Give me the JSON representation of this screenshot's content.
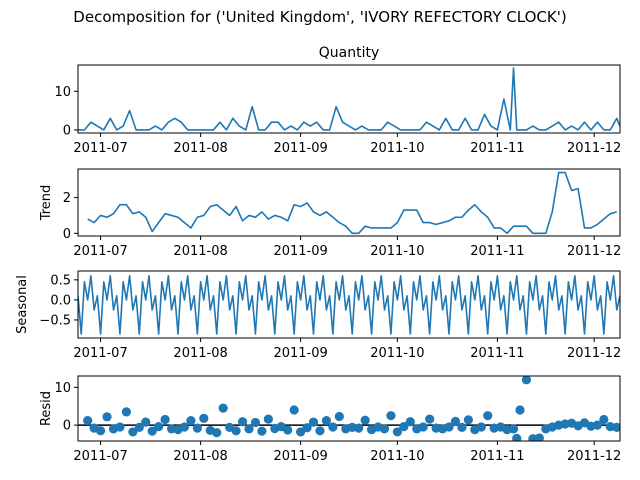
{
  "figure": {
    "title": "Decomposition for ('United Kingdom', 'IVORY REFECTORY CLOCK')",
    "line_color": "#1f77b4",
    "zero_line_color": "#000000"
  },
  "chart_data": [
    {
      "type": "line",
      "title": "Quantity",
      "xlabel": "",
      "ylabel": "",
      "xlim": [
        "2011-06-24",
        "2011-12-09"
      ],
      "ylim": [
        -0.8,
        16.8
      ],
      "grid": false,
      "yticks": [
        {
          "value": 0,
          "label": "0"
        },
        {
          "value": 10,
          "label": "10"
        }
      ],
      "xticks": [
        {
          "value": "2011-07-01",
          "label": "2011-07"
        },
        {
          "value": "2011-08-01",
          "label": "2011-08"
        },
        {
          "value": "2011-09-01",
          "label": "2011-09"
        },
        {
          "value": "2011-10-01",
          "label": "2011-10"
        },
        {
          "value": "2011-11-01",
          "label": "2011-11"
        },
        {
          "value": "2011-12-01",
          "label": "2011-12"
        }
      ],
      "x": [
        "2011-06-24",
        "2011-06-26",
        "2011-06-28",
        "2011-06-30",
        "2011-07-02",
        "2011-07-04",
        "2011-07-06",
        "2011-07-08",
        "2011-07-10",
        "2011-07-12",
        "2011-07-14",
        "2011-07-16",
        "2011-07-18",
        "2011-07-20",
        "2011-07-22",
        "2011-07-24",
        "2011-07-26",
        "2011-07-28",
        "2011-07-30",
        "2011-08-01",
        "2011-08-03",
        "2011-08-05",
        "2011-08-07",
        "2011-08-09",
        "2011-08-11",
        "2011-08-13",
        "2011-08-15",
        "2011-08-17",
        "2011-08-19",
        "2011-08-21",
        "2011-08-23",
        "2011-08-25",
        "2011-08-27",
        "2011-08-29",
        "2011-08-31",
        "2011-09-02",
        "2011-09-04",
        "2011-09-06",
        "2011-09-08",
        "2011-09-10",
        "2011-09-12",
        "2011-09-14",
        "2011-09-16",
        "2011-09-18",
        "2011-09-20",
        "2011-09-22",
        "2011-09-24",
        "2011-09-26",
        "2011-09-28",
        "2011-09-30",
        "2011-10-02",
        "2011-10-04",
        "2011-10-06",
        "2011-10-08",
        "2011-10-10",
        "2011-10-12",
        "2011-10-14",
        "2011-10-16",
        "2011-10-18",
        "2011-10-20",
        "2011-10-22",
        "2011-10-24",
        "2011-10-26",
        "2011-10-28",
        "2011-10-30",
        "2011-11-01",
        "2011-11-03",
        "2011-11-05",
        "2011-11-06",
        "2011-11-07",
        "2011-11-08",
        "2011-11-10",
        "2011-11-12",
        "2011-11-14",
        "2011-11-16",
        "2011-11-18",
        "2011-11-20",
        "2011-11-22",
        "2011-11-24",
        "2011-11-26",
        "2011-11-28",
        "2011-11-30",
        "2011-12-02",
        "2011-12-04",
        "2011-12-06",
        "2011-12-08",
        "2011-12-09"
      ],
      "series": [
        {
          "values": [
            0,
            0,
            2,
            1,
            0,
            3,
            0,
            1,
            5,
            0,
            0,
            0,
            1,
            0,
            2,
            3,
            2,
            0,
            0,
            0,
            0,
            0,
            2,
            0,
            3,
            1,
            0,
            6,
            0,
            0,
            2,
            2,
            0,
            1,
            0,
            2,
            1,
            2,
            0,
            0,
            6,
            2,
            1,
            0,
            1,
            0,
            0,
            0,
            2,
            1,
            0,
            0,
            0,
            0,
            2,
            1,
            0,
            3,
            0,
            0,
            3,
            0,
            0,
            4,
            1,
            0,
            8,
            0,
            16,
            0,
            0,
            0,
            1,
            0,
            0,
            1,
            2,
            0,
            1,
            0,
            2,
            0,
            2,
            0,
            0,
            3,
            1
          ]
        }
      ]
    },
    {
      "type": "line",
      "title": "",
      "xlabel": "",
      "ylabel": "Trend",
      "xlim": [
        "2011-06-24",
        "2011-12-09"
      ],
      "ylim": [
        -0.15,
        3.6
      ],
      "grid": false,
      "yticks": [
        {
          "value": 0,
          "label": "0"
        },
        {
          "value": 2,
          "label": "2"
        }
      ],
      "xticks": [
        {
          "value": "2011-07-01",
          "label": "2011-07"
        },
        {
          "value": "2011-08-01",
          "label": "2011-08"
        },
        {
          "value": "2011-09-01",
          "label": "2011-09"
        },
        {
          "value": "2011-10-01",
          "label": "2011-10"
        },
        {
          "value": "2011-11-01",
          "label": "2011-11"
        },
        {
          "value": "2011-12-01",
          "label": "2011-12"
        }
      ],
      "x": [
        "2011-06-27",
        "2011-06-29",
        "2011-07-01",
        "2011-07-03",
        "2011-07-05",
        "2011-07-07",
        "2011-07-09",
        "2011-07-11",
        "2011-07-13",
        "2011-07-15",
        "2011-07-17",
        "2011-07-19",
        "2011-07-21",
        "2011-07-23",
        "2011-07-25",
        "2011-07-27",
        "2011-07-29",
        "2011-07-31",
        "2011-08-02",
        "2011-08-04",
        "2011-08-06",
        "2011-08-08",
        "2011-08-10",
        "2011-08-12",
        "2011-08-14",
        "2011-08-16",
        "2011-08-18",
        "2011-08-20",
        "2011-08-22",
        "2011-08-24",
        "2011-08-26",
        "2011-08-28",
        "2011-08-30",
        "2011-09-01",
        "2011-09-03",
        "2011-09-05",
        "2011-09-07",
        "2011-09-09",
        "2011-09-11",
        "2011-09-13",
        "2011-09-15",
        "2011-09-17",
        "2011-09-19",
        "2011-09-21",
        "2011-09-23",
        "2011-09-25",
        "2011-09-27",
        "2011-09-29",
        "2011-10-01",
        "2011-10-03",
        "2011-10-05",
        "2011-10-07",
        "2011-10-09",
        "2011-10-11",
        "2011-10-13",
        "2011-10-15",
        "2011-10-17",
        "2011-10-19",
        "2011-10-21",
        "2011-10-23",
        "2011-10-25",
        "2011-10-27",
        "2011-10-29",
        "2011-10-31",
        "2011-11-02",
        "2011-11-04",
        "2011-11-06",
        "2011-11-08",
        "2011-11-10",
        "2011-11-12",
        "2011-11-14",
        "2011-11-16",
        "2011-11-18",
        "2011-11-20",
        "2011-11-22",
        "2011-11-24",
        "2011-11-26",
        "2011-11-28",
        "2011-11-30",
        "2011-12-02",
        "2011-12-04",
        "2011-12-06",
        "2011-12-08"
      ],
      "series": [
        {
          "values": [
            0.8,
            0.6,
            1.0,
            0.9,
            1.1,
            1.6,
            1.6,
            1.1,
            1.2,
            0.9,
            0.1,
            0.6,
            1.1,
            1.0,
            0.9,
            0.6,
            0.3,
            0.9,
            1.0,
            1.5,
            1.6,
            1.3,
            1.0,
            1.5,
            0.7,
            1.0,
            0.9,
            1.2,
            0.8,
            1.0,
            0.9,
            0.7,
            1.6,
            1.5,
            1.7,
            1.2,
            1.0,
            1.2,
            0.9,
            0.6,
            0.4,
            0.0,
            0.0,
            0.4,
            0.3,
            0.3,
            0.3,
            0.3,
            0.6,
            1.3,
            1.3,
            1.3,
            0.6,
            0.6,
            0.5,
            0.6,
            0.7,
            0.9,
            0.9,
            1.3,
            1.6,
            1.2,
            0.9,
            0.3,
            0.3,
            0.0,
            0.4,
            0.4,
            0.4,
            0.0,
            0.0,
            0.0,
            1.2,
            3.4,
            3.4,
            2.4,
            2.5,
            0.3,
            0.3,
            0.5,
            0.8,
            1.1,
            1.2
          ]
        }
      ]
    },
    {
      "type": "line",
      "title": "",
      "xlabel": "",
      "ylabel": "Seasonal",
      "xlim": [
        "2011-06-24",
        "2011-12-09"
      ],
      "ylim": [
        -0.95,
        0.72
      ],
      "grid": false,
      "yticks": [
        {
          "value": 0.5,
          "label": "0.5"
        },
        {
          "value": 0.0,
          "label": "0.0"
        },
        {
          "value": -0.5,
          "label": "−0.5"
        }
      ],
      "xticks": [
        {
          "value": "2011-07-01",
          "label": "2011-07"
        },
        {
          "value": "2011-08-01",
          "label": "2011-08"
        },
        {
          "value": "2011-09-01",
          "label": "2011-09"
        },
        {
          "value": "2011-10-01",
          "label": "2011-10"
        },
        {
          "value": "2011-11-01",
          "label": "2011-11"
        },
        {
          "value": "2011-12-01",
          "label": "2011-12"
        }
      ],
      "x_start": "2011-06-24",
      "x_end": "2011-12-09",
      "period_values": [
        0.1,
        -0.85,
        0.45,
        0.0,
        0.6,
        -0.25
      ],
      "series": [
        {
          "values": "periodic"
        }
      ]
    },
    {
      "type": "scatter",
      "title": "",
      "xlabel": "",
      "ylabel": "Resid",
      "xlim": [
        "2011-06-24",
        "2011-12-09"
      ],
      "ylim": [
        -4.2,
        13.0
      ],
      "grid": false,
      "zero_line": 0,
      "yticks": [
        {
          "value": 0,
          "label": "0"
        },
        {
          "value": 10,
          "label": "10"
        }
      ],
      "xticks": [
        {
          "value": "2011-07-01",
          "label": "2011-07"
        },
        {
          "value": "2011-08-01",
          "label": "2011-08"
        },
        {
          "value": "2011-09-01",
          "label": "2011-09"
        },
        {
          "value": "2011-10-01",
          "label": "2011-10"
        },
        {
          "value": "2011-11-01",
          "label": "2011-11"
        },
        {
          "value": "2011-12-01",
          "label": "2011-12"
        }
      ],
      "x": [
        "2011-06-27",
        "2011-06-29",
        "2011-07-01",
        "2011-07-03",
        "2011-07-05",
        "2011-07-07",
        "2011-07-09",
        "2011-07-11",
        "2011-07-13",
        "2011-07-15",
        "2011-07-17",
        "2011-07-19",
        "2011-07-21",
        "2011-07-23",
        "2011-07-25",
        "2011-07-27",
        "2011-07-29",
        "2011-07-31",
        "2011-08-02",
        "2011-08-04",
        "2011-08-06",
        "2011-08-08",
        "2011-08-10",
        "2011-08-12",
        "2011-08-14",
        "2011-08-16",
        "2011-08-18",
        "2011-08-20",
        "2011-08-22",
        "2011-08-24",
        "2011-08-26",
        "2011-08-28",
        "2011-08-30",
        "2011-09-01",
        "2011-09-03",
        "2011-09-05",
        "2011-09-07",
        "2011-09-09",
        "2011-09-11",
        "2011-09-13",
        "2011-09-15",
        "2011-09-17",
        "2011-09-19",
        "2011-09-21",
        "2011-09-23",
        "2011-09-25",
        "2011-09-27",
        "2011-09-29",
        "2011-10-01",
        "2011-10-03",
        "2011-10-05",
        "2011-10-07",
        "2011-10-09",
        "2011-10-11",
        "2011-10-13",
        "2011-10-15",
        "2011-10-17",
        "2011-10-19",
        "2011-10-21",
        "2011-10-23",
        "2011-10-25",
        "2011-10-27",
        "2011-10-29",
        "2011-10-31",
        "2011-11-02",
        "2011-11-04",
        "2011-11-06",
        "2011-11-07",
        "2011-11-08",
        "2011-11-10",
        "2011-11-12",
        "2011-11-14",
        "2011-11-16",
        "2011-11-18",
        "2011-11-20",
        "2011-11-22",
        "2011-11-24",
        "2011-11-26",
        "2011-11-28",
        "2011-11-30",
        "2011-12-02",
        "2011-12-04",
        "2011-12-06",
        "2011-12-08"
      ],
      "series": [
        {
          "values": [
            1.2,
            -0.8,
            -1.5,
            2.2,
            -1.0,
            -0.5,
            3.5,
            -1.8,
            -0.6,
            0.8,
            -1.6,
            -0.4,
            1.5,
            -1.0,
            -1.2,
            -0.5,
            1.2,
            -0.8,
            1.8,
            -1.4,
            -2.0,
            4.5,
            -0.6,
            -1.5,
            0.9,
            -1.0,
            0.7,
            -1.6,
            1.6,
            -0.9,
            -0.4,
            -1.3,
            4.0,
            -1.8,
            -0.7,
            0.8,
            -1.5,
            1.2,
            -0.5,
            2.3,
            -1.0,
            -0.6,
            -0.8,
            1.3,
            -1.2,
            -0.5,
            -1.0,
            2.5,
            -1.8,
            -0.4,
            0.9,
            -1.0,
            -0.5,
            1.6,
            -0.8,
            -1.0,
            -0.5,
            1.0,
            -0.6,
            1.4,
            -1.2,
            -0.5,
            2.5,
            -0.8,
            -0.5,
            -1.2,
            -1.0,
            -3.5,
            4.0,
            12.0,
            -3.6,
            -3.4,
            -1.0,
            -0.5,
            0.0,
            0.3,
            0.5,
            -0.2,
            0.6,
            -0.3,
            0.0,
            1.5,
            -0.4,
            -0.6
          ]
        }
      ]
    }
  ]
}
